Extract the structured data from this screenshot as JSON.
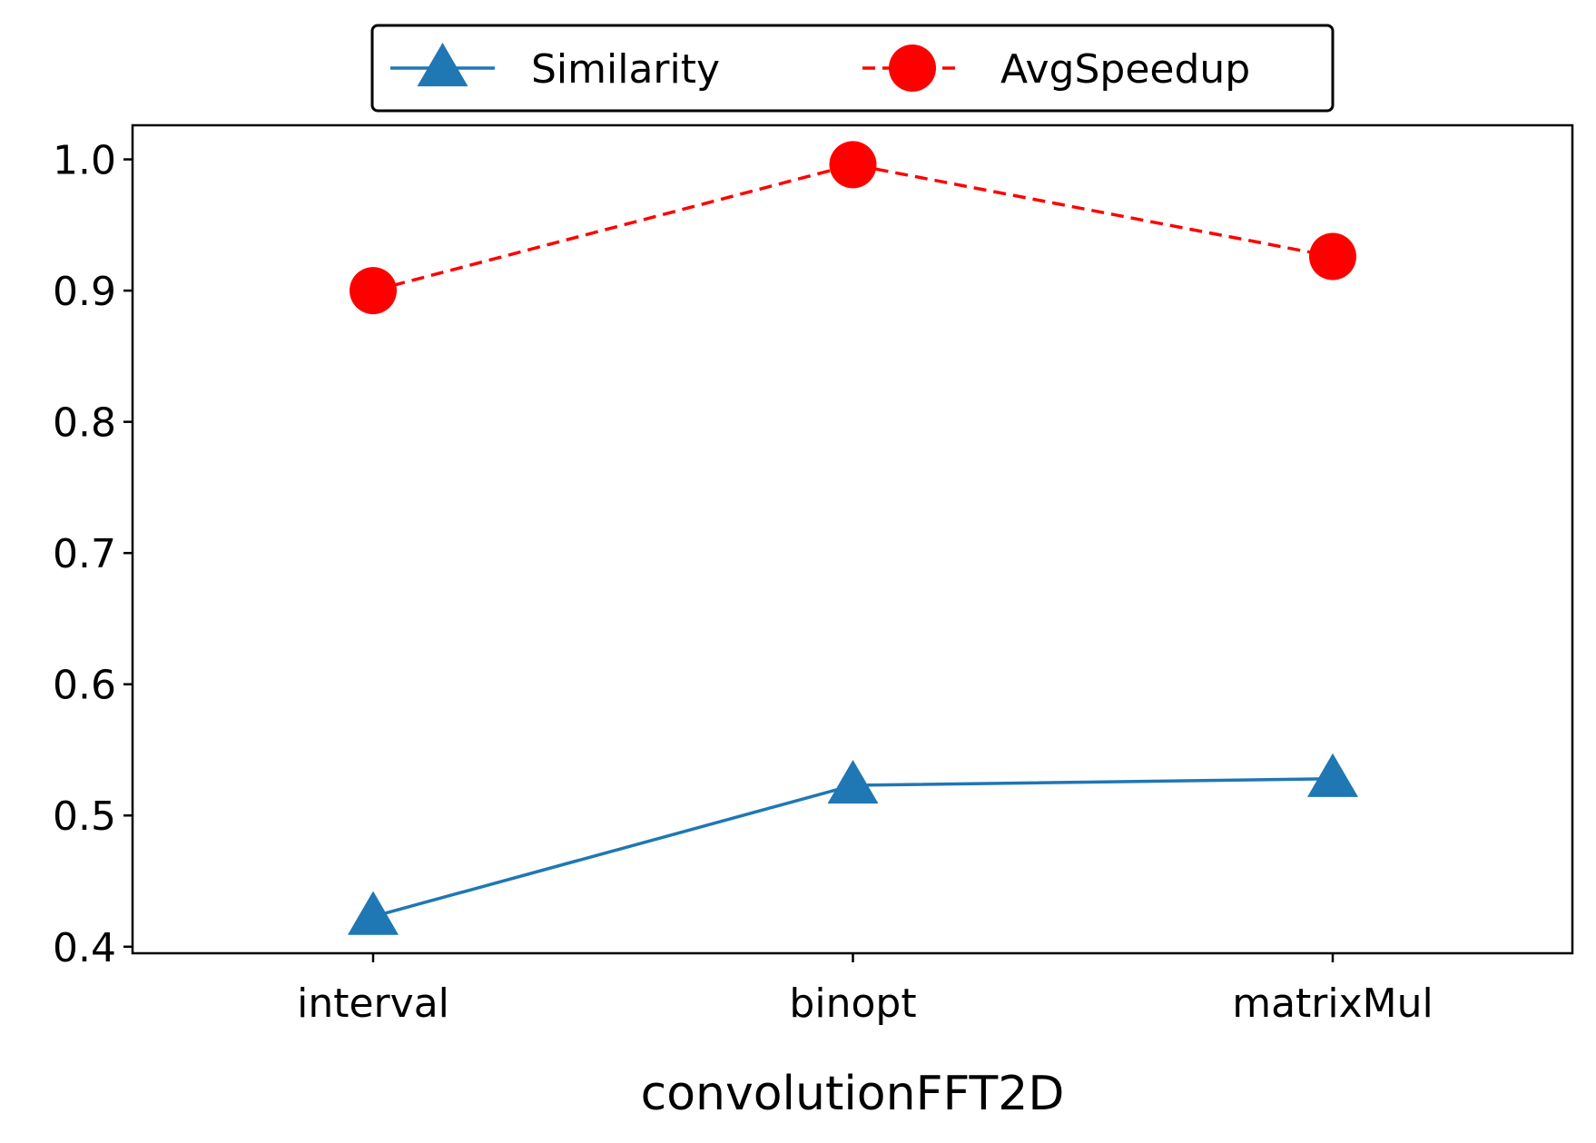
{
  "chart_data": {
    "type": "line",
    "title": "",
    "xlabel": "convolutionFFT2D",
    "ylabel": "",
    "categories": [
      "interval",
      "binopt",
      "matrixMul"
    ],
    "ylim": [
      0.395,
      1.026
    ],
    "yticks": [
      0.4,
      0.5,
      0.6,
      0.7,
      0.8,
      0.9,
      1.0
    ],
    "ytick_labels": [
      "0.4",
      "0.5",
      "0.6",
      "0.7",
      "0.8",
      "0.9",
      "1.0"
    ],
    "grid": false,
    "legend_position": "top-center",
    "series": [
      {
        "name": "Similarity",
        "values": [
          0.423,
          0.523,
          0.528
        ],
        "color": "#1f77b4",
        "line_style": "solid",
        "marker": "triangle"
      },
      {
        "name": "AvgSpeedup",
        "values": [
          0.9,
          0.996,
          0.926
        ],
        "color": "#ff0000",
        "line_style": "dashed",
        "marker": "circle"
      }
    ]
  }
}
